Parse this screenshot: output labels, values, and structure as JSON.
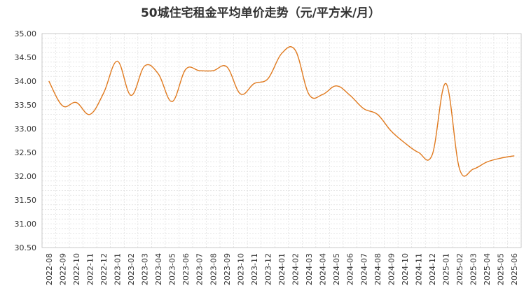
{
  "chart_data": {
    "type": "line",
    "title": "50城住宅租金平均单价走势（元/平方米/月）",
    "xlabel": "",
    "ylabel": "",
    "ylim": [
      30.5,
      35.0
    ],
    "yticks": [
      "35.00",
      "34.50",
      "34.00",
      "33.50",
      "33.00",
      "32.50",
      "32.00",
      "31.50",
      "31.00",
      "30.50"
    ],
    "grid": true,
    "legend": "none",
    "line_color": "#E07A1F",
    "categories": [
      "2022-08",
      "2022-09",
      "2022-10",
      "2022-11",
      "2022-12",
      "2023-01",
      "2023-02",
      "2023-03",
      "2023-04",
      "2023-05",
      "2023-06",
      "2023-07",
      "2023-08",
      "2023-09",
      "2023-10",
      "2023-11",
      "2023-12",
      "2024-01",
      "2024-02",
      "2024-03",
      "2024-04",
      "2024-05",
      "2024-06",
      "2024-07",
      "2024-08",
      "2024-09",
      "2024-10",
      "2024-11",
      "2024-12",
      "2025-01",
      "2025-02",
      "2025-03",
      "2025-04",
      "2025-05",
      "2025-06"
    ],
    "values": [
      34.0,
      33.48,
      33.55,
      33.3,
      33.75,
      34.42,
      33.7,
      34.32,
      34.15,
      33.57,
      34.25,
      34.22,
      34.22,
      34.3,
      33.73,
      33.95,
      34.05,
      34.58,
      34.65,
      33.72,
      33.72,
      33.9,
      33.7,
      33.42,
      33.3,
      32.95,
      32.7,
      32.5,
      32.45,
      33.95,
      32.15,
      32.15,
      32.3,
      32.38,
      32.43
    ]
  }
}
